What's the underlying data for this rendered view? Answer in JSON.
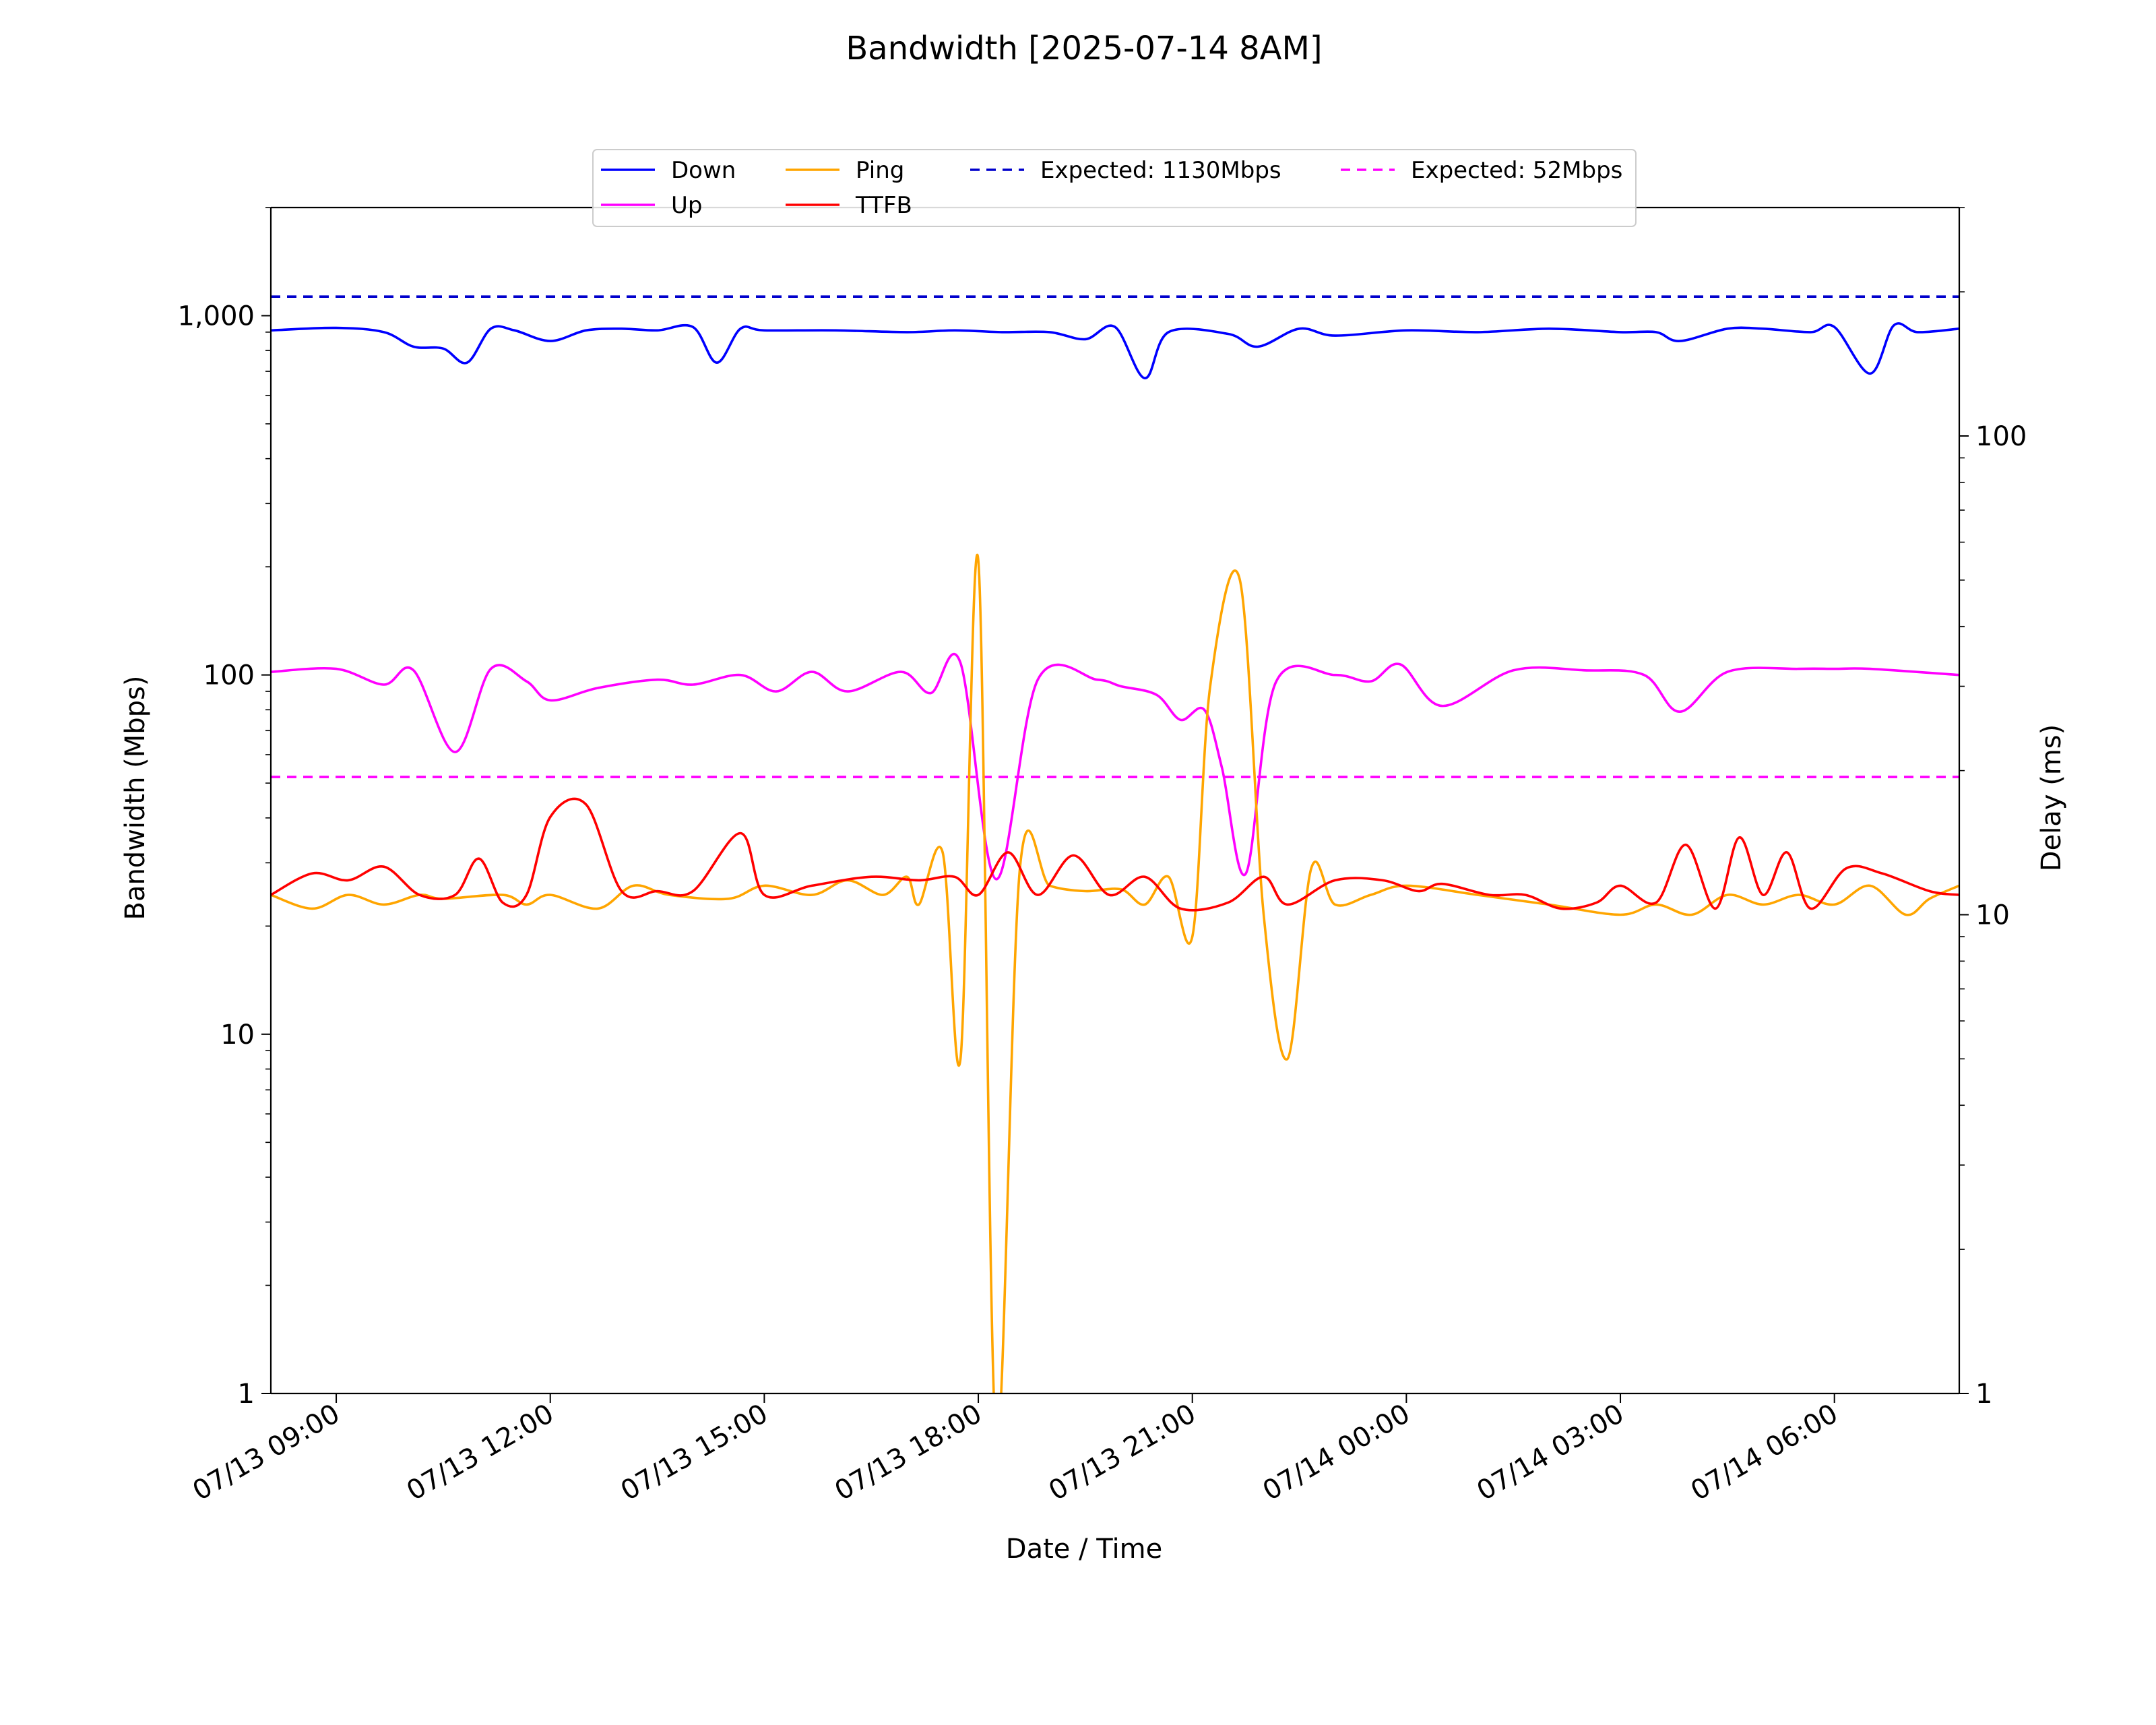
{
  "chart_data": {
    "type": "line",
    "title": "Bandwidth [2025-07-14 8AM]",
    "xlabel": "Date / Time",
    "ylabel_left": "Bandwidth (Mbps)",
    "ylabel_right": "Delay (ms)",
    "x_ticks": [
      "07/13 09:00",
      "07/13 12:00",
      "07/13 15:00",
      "07/13 18:00",
      "07/13 21:00",
      "07/14 00:00",
      "07/14 03:00",
      "07/14 06:00"
    ],
    "y_left_ticks": [
      "1",
      "10",
      "100",
      "1,000"
    ],
    "y_right_ticks": [
      "1",
      "10",
      "100"
    ],
    "y_left_scale": "log",
    "y_right_scale": "log",
    "y_left_lim": [
      1,
      2000
    ],
    "y_right_lim": [
      1,
      300
    ],
    "x_range": [
      "07/13 08:05",
      "07/14 07:45"
    ],
    "grid": false,
    "legend_position": "top-center",
    "series": [
      {
        "name": "Down",
        "axis": "left",
        "color": "#0000ff",
        "style": "solid",
        "x": [
          "07/13 08:05",
          "07/13 09:00",
          "07/13 09:40",
          "07/13 10:05",
          "07/13 10:30",
          "07/13 10:50",
          "07/13 11:10",
          "07/13 11:30",
          "07/13 12:00",
          "07/13 12:30",
          "07/13 13:00",
          "07/13 13:30",
          "07/13 14:00",
          "07/13 14:20",
          "07/13 14:40",
          "07/13 15:00",
          "07/13 16:00",
          "07/13 17:00",
          "07/13 17:40",
          "07/13 18:20",
          "07/13 19:00",
          "07/13 19:30",
          "07/13 19:55",
          "07/13 20:20",
          "07/13 20:40",
          "07/13 21:30",
          "07/13 21:55",
          "07/13 22:30",
          "07/13 23:00",
          "07/14 00:00",
          "07/14 01:00",
          "07/14 02:00",
          "07/14 03:00",
          "07/14 03:30",
          "07/14 03:50",
          "07/14 04:30",
          "07/14 05:00",
          "07/14 05:40",
          "07/14 06:00",
          "07/14 06:30",
          "07/14 06:50",
          "07/14 07:10",
          "07/14 07:45"
        ],
        "y": [
          910,
          925,
          900,
          820,
          810,
          740,
          920,
          910,
          850,
          910,
          920,
          910,
          930,
          740,
          920,
          910,
          910,
          900,
          910,
          900,
          900,
          860,
          930,
          670,
          900,
          890,
          820,
          920,
          880,
          910,
          900,
          920,
          900,
          900,
          850,
          920,
          920,
          900,
          930,
          690,
          940,
          900,
          920
        ]
      },
      {
        "name": "Up",
        "axis": "left",
        "color": "#ff00ff",
        "style": "solid",
        "x": [
          "07/13 08:05",
          "07/13 09:00",
          "07/13 09:40",
          "07/13 10:05",
          "07/13 10:40",
          "07/13 11:10",
          "07/13 11:40",
          "07/13 12:00",
          "07/13 12:40",
          "07/13 13:30",
          "07/13 14:00",
          "07/13 14:40",
          "07/13 15:10",
          "07/13 15:40",
          "07/13 16:10",
          "07/13 16:55",
          "07/13 17:20",
          "07/13 17:45",
          "07/13 18:15",
          "07/13 18:50",
          "07/13 19:40",
          "07/13 20:00",
          "07/13 20:30",
          "07/13 20:50",
          "07/13 21:10",
          "07/13 21:25",
          "07/13 21:45",
          "07/13 22:10",
          "07/13 23:00",
          "07/13 23:30",
          "07/13 23:55",
          "07/14 00:30",
          "07/14 01:30",
          "07/14 02:30",
          "07/14 03:20",
          "07/14 03:50",
          "07/14 04:30",
          "07/14 05:30",
          "07/14 06:00",
          "07/14 06:30",
          "07/14 07:45"
        ],
        "y": [
          102,
          104,
          94,
          103,
          61,
          104,
          96,
          85,
          92,
          97,
          94,
          100,
          90,
          102,
          90,
          102,
          89,
          108,
          27,
          97,
          97,
          93,
          88,
          75,
          80,
          55,
          28,
          95,
          100,
          96,
          107,
          82,
          103,
          103,
          100,
          79,
          102,
          104,
          104,
          104,
          100
        ]
      },
      {
        "name": "Ping",
        "axis": "right",
        "color": "#ffa500",
        "style": "solid",
        "x": [
          "07/13 08:05",
          "07/13 08:40",
          "07/13 09:10",
          "07/13 09:40",
          "07/13 10:10",
          "07/13 10:30",
          "07/13 11:20",
          "07/13 11:40",
          "07/13 12:00",
          "07/13 12:40",
          "07/13 13:10",
          "07/13 13:40",
          "07/13 14:30",
          "07/13 15:00",
          "07/13 15:40",
          "07/13 16:10",
          "07/13 16:40",
          "07/13 17:00",
          "07/13 17:10",
          "07/13 17:30",
          "07/13 17:45",
          "07/13 18:00",
          "07/13 18:15",
          "07/13 18:35",
          "07/13 19:00",
          "07/13 19:30",
          "07/13 20:00",
          "07/13 20:20",
          "07/13 20:40",
          "07/13 21:00",
          "07/13 21:15",
          "07/13 21:40",
          "07/13 22:00",
          "07/13 22:20",
          "07/13 22:40",
          "07/13 23:00",
          "07/13 23:30",
          "07/14 00:00",
          "07/14 01:00",
          "07/14 02:00",
          "07/14 03:00",
          "07/14 03:30",
          "07/14 04:00",
          "07/14 04:30",
          "07/14 05:00",
          "07/14 05:30",
          "07/14 06:00",
          "07/14 06:30",
          "07/14 07:00",
          "07/14 07:20",
          "07/14 07:45"
        ],
        "y": [
          11,
          10.3,
          11,
          10.5,
          11,
          10.8,
          11,
          10.5,
          11,
          10.3,
          11.5,
          11,
          10.8,
          11.5,
          11,
          11.8,
          11,
          12,
          10.5,
          13.5,
          5,
          55,
          0.8,
          12.5,
          11.5,
          11.2,
          11.3,
          10.5,
          12,
          9,
          30,
          50,
          10,
          5,
          12.5,
          10.5,
          11,
          11.5,
          11,
          10.5,
          10,
          10.5,
          10,
          11,
          10.5,
          11,
          10.5,
          11.5,
          10,
          10.8,
          11.5
        ]
      },
      {
        "name": "TTFB",
        "axis": "right",
        "color": "#ff0000",
        "style": "solid",
        "x": [
          "07/13 08:05",
          "07/13 08:40",
          "07/13 09:10",
          "07/13 09:40",
          "07/13 10:10",
          "07/13 10:40",
          "07/13 11:00",
          "07/13 11:20",
          "07/13 11:40",
          "07/13 12:00",
          "07/13 12:30",
          "07/13 13:00",
          "07/13 13:30",
          "07/13 14:00",
          "07/13 14:40",
          "07/13 15:00",
          "07/13 15:40",
          "07/13 16:30",
          "07/13 17:10",
          "07/13 17:40",
          "07/13 18:00",
          "07/13 18:25",
          "07/13 18:50",
          "07/13 19:20",
          "07/13 19:50",
          "07/13 20:20",
          "07/13 20:50",
          "07/13 21:30",
          "07/13 22:00",
          "07/13 22:20",
          "07/13 23:00",
          "07/13 23:40",
          "07/14 00:10",
          "07/14 00:30",
          "07/14 01:10",
          "07/14 01:40",
          "07/14 02:10",
          "07/14 02:40",
          "07/14 03:00",
          "07/14 03:30",
          "07/14 03:55",
          "07/14 04:20",
          "07/14 04:40",
          "07/14 05:00",
          "07/14 05:20",
          "07/14 05:40",
          "07/14 06:10",
          "07/14 06:40",
          "07/14 07:20",
          "07/14 07:45"
        ],
        "y": [
          11,
          12.2,
          11.8,
          12.6,
          11,
          11,
          13.1,
          10.6,
          11,
          16,
          17,
          11.2,
          11.2,
          11.2,
          14.8,
          11,
          11.5,
          12,
          11.8,
          12,
          11,
          13.5,
          11,
          13.3,
          11,
          12,
          10.3,
          10.6,
          12,
          10.5,
          11.8,
          11.8,
          11.2,
          11.6,
          11,
          11,
          10.3,
          10.6,
          11.5,
          10.6,
          14,
          10.3,
          14.5,
          11,
          13.5,
          10.3,
          12.5,
          12.2,
          11.2,
          11
        ]
      },
      {
        "name": "Expected: 1130Mbps",
        "axis": "left",
        "color": "#0000cc",
        "style": "dashed",
        "x": [
          "07/13 08:05",
          "07/14 07:45"
        ],
        "y": [
          1130,
          1130
        ]
      },
      {
        "name": "Expected: 52Mbps",
        "axis": "left",
        "color": "#ff00ff",
        "style": "dashed",
        "x": [
          "07/13 08:05",
          "07/14 07:45"
        ],
        "y": [
          52,
          52
        ]
      }
    ]
  }
}
